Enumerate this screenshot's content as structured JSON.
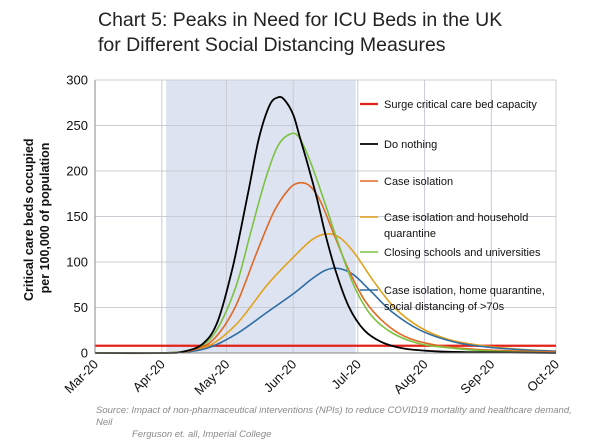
{
  "title_line1": "Chart 5: Peaks in Need for ICU Beds in the UK",
  "title_line2": "for Different Social Distancing Measures",
  "source_line1": "Source: Impact of non-pharmaceutical interventions (NPIs) to reduce COVID19 mortality and healthcare demand, Neil",
  "source_line2": "Ferguson et. all, Imperial College",
  "chart_data": {
    "type": "line",
    "ylabel_line1": "Critical care beds occupied",
    "ylabel_line2": "per 100,000 of population",
    "xlim": [
      "2020-03-01",
      "2020-10-01"
    ],
    "ylim": [
      0,
      300
    ],
    "x_ticks": [
      "Mar-20",
      "Apr-20",
      "May-20",
      "Jun-20",
      "Jul-20",
      "Aug-20",
      "Sep-20",
      "Oct-20"
    ],
    "y_ticks": [
      "0",
      "50",
      "100",
      "150",
      "200",
      "250",
      "300"
    ],
    "grid": true,
    "shaded_period": [
      "2020-04-03",
      "2020-06-30"
    ],
    "shaded_color": "#dde3f1",
    "legend_position": "right",
    "capacity_line": {
      "name": "Surge critical care bed capacity",
      "value": 8,
      "color": "#e2231a"
    },
    "series": [
      {
        "name": "Do nothing",
        "color": "#000000",
        "x": [
          "2020-03-01",
          "2020-04-01",
          "2020-04-10",
          "2020-04-20",
          "2020-04-27",
          "2020-05-04",
          "2020-05-11",
          "2020-05-16",
          "2020-05-21",
          "2020-05-25",
          "2020-05-28",
          "2020-06-01",
          "2020-06-04",
          "2020-06-08",
          "2020-06-12",
          "2020-06-16",
          "2020-06-21",
          "2020-06-27",
          "2020-07-04",
          "2020-07-12",
          "2020-07-22",
          "2020-08-05",
          "2020-08-20",
          "2020-10-01"
        ],
        "y": [
          0,
          0,
          1,
          10,
          35,
          95,
          175,
          235,
          272,
          281,
          278,
          262,
          238,
          205,
          170,
          130,
          88,
          50,
          25,
          12,
          5,
          2,
          1,
          0
        ]
      },
      {
        "name": "Case isolation",
        "color": "#e06a25",
        "x": [
          "2020-03-01",
          "2020-04-01",
          "2020-04-15",
          "2020-04-25",
          "2020-05-05",
          "2020-05-15",
          "2020-05-23",
          "2020-05-30",
          "2020-06-04",
          "2020-06-09",
          "2020-06-14",
          "2020-06-20",
          "2020-06-27",
          "2020-07-05",
          "2020-07-15",
          "2020-07-25",
          "2020-08-08",
          "2020-08-25",
          "2020-09-15",
          "2020-10-01"
        ],
        "y": [
          0,
          0,
          3,
          15,
          50,
          110,
          155,
          180,
          187,
          183,
          165,
          130,
          90,
          55,
          30,
          16,
          8,
          4,
          2,
          1
        ]
      },
      {
        "name": "Case isolation and household quarantine",
        "color": "#e2a21e",
        "x": [
          "2020-03-01",
          "2020-04-01",
          "2020-04-20",
          "2020-05-05",
          "2020-05-20",
          "2020-06-01",
          "2020-06-10",
          "2020-06-17",
          "2020-06-23",
          "2020-06-30",
          "2020-07-08",
          "2020-07-18",
          "2020-07-30",
          "2020-08-12",
          "2020-08-28",
          "2020-09-15",
          "2020-10-01"
        ],
        "y": [
          0,
          0,
          5,
          30,
          75,
          105,
          125,
          131,
          126,
          108,
          80,
          50,
          28,
          15,
          8,
          4,
          2
        ]
      },
      {
        "name": "Closing schools and universities",
        "color": "#7cc241",
        "x": [
          "2020-03-01",
          "2020-04-01",
          "2020-04-15",
          "2020-04-25",
          "2020-05-05",
          "2020-05-12",
          "2020-05-19",
          "2020-05-25",
          "2020-05-31",
          "2020-06-04",
          "2020-06-09",
          "2020-06-15",
          "2020-06-22",
          "2020-06-29",
          "2020-07-07",
          "2020-07-17",
          "2020-07-30",
          "2020-08-15",
          "2020-09-01",
          "2020-10-01"
        ],
        "y": [
          0,
          0,
          4,
          20,
          70,
          130,
          190,
          228,
          241,
          236,
          210,
          170,
          120,
          75,
          42,
          22,
          10,
          5,
          2,
          0
        ]
      },
      {
        "name": "Case isolation, home quarantine, social distancing of >70s",
        "color": "#2e6da4",
        "x": [
          "2020-03-01",
          "2020-04-01",
          "2020-04-20",
          "2020-05-05",
          "2020-05-20",
          "2020-06-01",
          "2020-06-10",
          "2020-06-16",
          "2020-06-22",
          "2020-06-29",
          "2020-07-07",
          "2020-07-17",
          "2020-07-30",
          "2020-08-15",
          "2020-09-01",
          "2020-09-20",
          "2020-10-01"
        ],
        "y": [
          0,
          0,
          4,
          20,
          45,
          65,
          82,
          91,
          93,
          86,
          68,
          45,
          25,
          12,
          6,
          3,
          2
        ]
      }
    ]
  }
}
